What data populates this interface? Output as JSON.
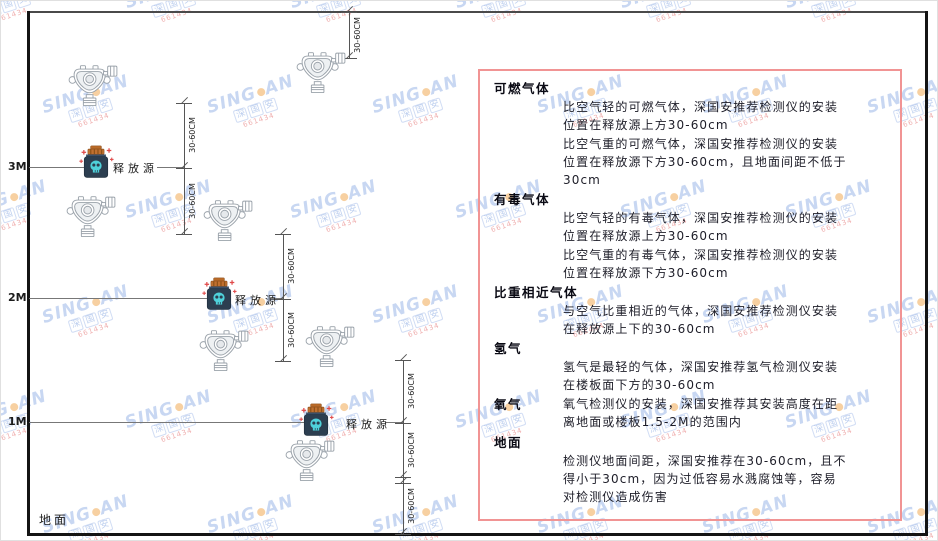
{
  "watermark": {
    "brand_prefix": "SING",
    "brand_suffix": "AN",
    "brand_sub": "深国安",
    "agent_code": "661434",
    "brand_color": "#7b9fe0",
    "dot_color": "#f0a243",
    "agent_color": "#e57878"
  },
  "diagram": {
    "height_labels": [
      "3M",
      "2M",
      "1M"
    ],
    "ground_label": "地面",
    "release_source_label": "释放源",
    "dim_label": "30-60CM",
    "colors": {
      "wall": "#141414",
      "dimension_line": "#555555",
      "source_body": "#2c3e50",
      "source_lid": "#c07030",
      "source_skull": "#4fd1da",
      "detector_outline": "#9aa2aa"
    }
  },
  "panel": {
    "border_color": "#f19494",
    "sections": [
      {
        "title": "可燃气体",
        "paragraphs": [
          "比空气轻的可燃气体，深国安推荐检测仪的安装位置在释放源上方30-60cm",
          "比空气重的可燃气体，深国安推荐检测仪的安装位置在释放源下方30-60cm，且地面间距不低于30cm"
        ]
      },
      {
        "title": "有毒气体",
        "paragraphs": [
          "比空气轻的有毒气体，深国安推荐检测仪的安装位置在释放源上方30-60cm",
          "比空气重的有毒气体，深国安推荐检测仪的安装位置在释放源下方30-60cm"
        ]
      },
      {
        "title": "比重相近气体",
        "paragraphs": [
          "与空气比重相近的气体，深国安推荐检测仪安装在释放源上下的30-60cm"
        ]
      },
      {
        "title": "氢气",
        "paragraphs": [
          "氢气是最轻的气体，深国安推荐氢气检测仪安装在楼板面下方的30-60cm"
        ]
      },
      {
        "title": "氧气",
        "paragraphs": [
          "氧气检测仪的安装，深国安推荐其安装高度在距离地面或楼板1.5-2M的范围内"
        ]
      },
      {
        "title": "地面",
        "paragraphs": [
          "检测仪地面间距，深国安推荐在30-60cm，且不得小于30cm，因为过低容易水溅腐蚀等，容易对检测仪造成伤害"
        ]
      }
    ]
  }
}
